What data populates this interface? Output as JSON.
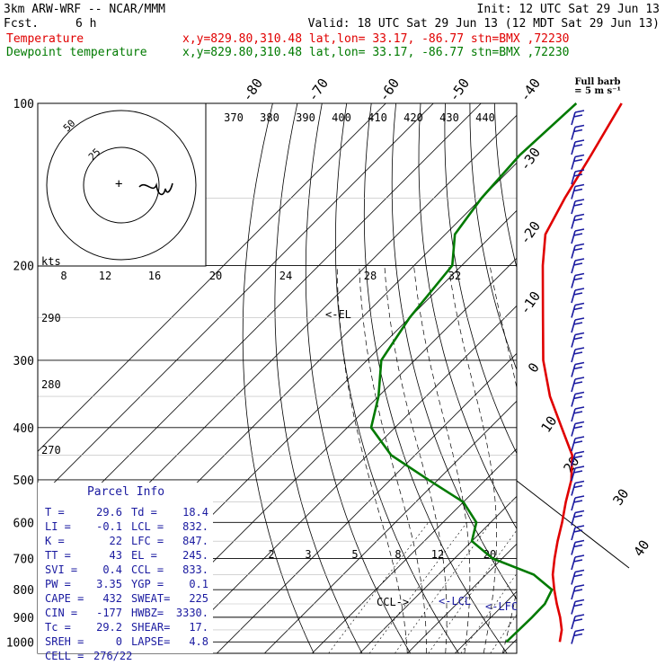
{
  "header": {
    "model": "3km ARW-WRF -- NCAR/MMM",
    "init": "Init: 12 UTC Sat 29 Jun 13",
    "fcst_label": "Fcst.",
    "fcst_value": "6 h",
    "valid": "Valid: 18 UTC Sat 29 Jun 13 (12 MDT Sat 29 Jun 13)",
    "temp_name": "Temperature",
    "temp_info": "x,y=829.80,310.48   lat,lon= 33.17, -86.77   stn=BMX ,72230",
    "dew_name": "Dewpoint temperature",
    "dew_info": "x,y=829.80,310.48   lat,lon= 33.17, -86.77   stn=BMX ,72230",
    "full_barb_1": "Full barb",
    "full_barb_2": "= 5 m s⁻¹",
    "colors": {
      "temperature": "#e00000",
      "dewpoint": "#007a00",
      "barbs": "#1a1aa0"
    }
  },
  "chart_data": {
    "type": "line",
    "skewt": true,
    "pressure_ticks": [
      "100",
      "200",
      "300",
      "400",
      "500",
      "600",
      "700",
      "800",
      "900",
      "1000"
    ],
    "temp_axis_ticks": [
      "-80",
      "-70",
      "-60",
      "-50",
      "-40",
      "-30",
      "-20",
      "-10",
      "0",
      "10",
      "20",
      "30",
      "40"
    ],
    "isentrope_labels": [
      "370",
      "380",
      "390",
      "400",
      "410",
      "420",
      "430",
      "440"
    ],
    "theta_labels_left": [
      "290",
      "280",
      "270"
    ],
    "mixing_ratio_labels": [
      "2",
      "3",
      "5",
      "8",
      "12",
      "20"
    ],
    "annotations": [
      "<-EL",
      "CCL->",
      "<-LCL",
      "<-LFC"
    ],
    "series": [
      {
        "name": "Temperature",
        "points": [
          [
            100,
            -70.5
          ],
          [
            125,
            -66
          ],
          [
            150,
            -62.5
          ],
          [
            175,
            -59
          ],
          [
            200,
            -53
          ],
          [
            250,
            -42
          ],
          [
            300,
            -33
          ],
          [
            350,
            -24
          ],
          [
            400,
            -15
          ],
          [
            450,
            -7
          ],
          [
            500,
            -2
          ],
          [
            550,
            1.5
          ],
          [
            600,
            5
          ],
          [
            650,
            8
          ],
          [
            700,
            11
          ],
          [
            750,
            14
          ],
          [
            800,
            17.5
          ],
          [
            850,
            21
          ],
          [
            900,
            24.5
          ],
          [
            950,
            27.5
          ],
          [
            1000,
            29.6
          ]
        ]
      },
      {
        "name": "Dewpoint temperature",
        "points": [
          [
            100,
            -80
          ],
          [
            125,
            -81
          ],
          [
            150,
            -80
          ],
          [
            175,
            -78
          ],
          [
            200,
            -72
          ],
          [
            250,
            -70
          ],
          [
            300,
            -67
          ],
          [
            350,
            -60
          ],
          [
            400,
            -55
          ],
          [
            450,
            -45
          ],
          [
            500,
            -32
          ],
          [
            550,
            -20
          ],
          [
            600,
            -13
          ],
          [
            650,
            -10
          ],
          [
            700,
            -2
          ],
          [
            750,
            10
          ],
          [
            800,
            17
          ],
          [
            850,
            18.5
          ],
          [
            900,
            18.6
          ],
          [
            950,
            18.5
          ],
          [
            1000,
            18.4
          ]
        ]
      }
    ]
  },
  "hodograph": {
    "rings": [
      "50",
      "25"
    ],
    "units": "kts"
  },
  "wind_barbs_count": 36,
  "parcel": {
    "title": "Parcel Info",
    "rows": [
      [
        "T  =",
        "29.6",
        "Td =",
        "18.4"
      ],
      [
        "LI =",
        "-0.1",
        "LCL =",
        "832."
      ],
      [
        "K  =",
        "22",
        "LFC =",
        "847."
      ],
      [
        "TT =",
        "43",
        "EL  =",
        "245."
      ],
      [
        "SVI =",
        "0.4",
        "CCL =",
        "833."
      ],
      [
        "PW =",
        "3.35",
        "YGP =",
        "0.1"
      ],
      [
        "CAPE =",
        "432",
        "SWEAT=",
        "225"
      ],
      [
        "CIN =",
        "-177",
        "HWBZ=",
        "3330."
      ],
      [
        "Tc =",
        "29.2",
        "SHEAR=",
        "17."
      ],
      [
        "SREH =",
        "0",
        "LAPSE=",
        "4.8"
      ]
    ],
    "cell_label": "CELL =",
    "cell_value": "276/22"
  }
}
